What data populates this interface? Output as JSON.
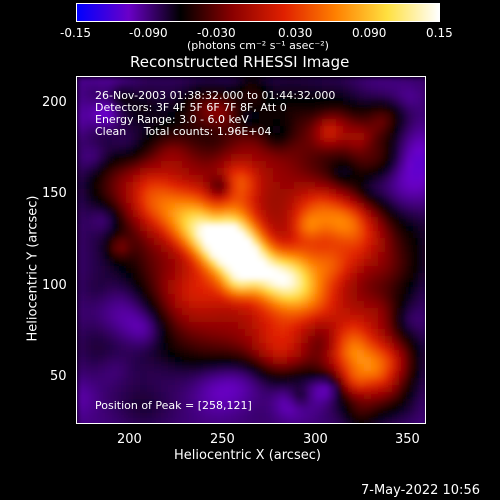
{
  "chart_data": {
    "type": "heatmap",
    "title": "Reconstructed RHESSI Image",
    "xlabel": "Heliocentric X (arcsec)",
    "ylabel": "Heliocentric Y (arcsec)",
    "xlim": [
      168,
      362
    ],
    "ylim": [
      24,
      220
    ],
    "x_ticks": [
      "200",
      "250",
      "300",
      "350"
    ],
    "y_ticks": [
      "50",
      "100",
      "150",
      "200"
    ],
    "colorbar": {
      "range": [
        -0.15,
        0.15
      ],
      "ticks": [
        "-0.15",
        "-0.090",
        "-0.030",
        "0.030",
        "0.090",
        "0.15"
      ],
      "unit_label": "(photons cm⁻² s⁻¹ asec⁻²)",
      "colormap": [
        "#0000ff",
        "#6a00c8",
        "#000000",
        "#8a0000",
        "#e02000",
        "#ff8000",
        "#ffe040",
        "#ffffff"
      ]
    },
    "annotations": [
      "26-Nov-2003 01:38:32.000 to 01:44:32.000",
      "Detectors: 3F 4F 5F 6F 7F 8F, Att 0",
      "Energy Range: 3.0 - 6.0 keV",
      "Clean     Total counts: 1.96E+04"
    ],
    "peak_label": "Position of Peak = [258,121]",
    "peak": [
      258,
      121
    ]
  },
  "timestamp": "7-May-2022 10:56"
}
